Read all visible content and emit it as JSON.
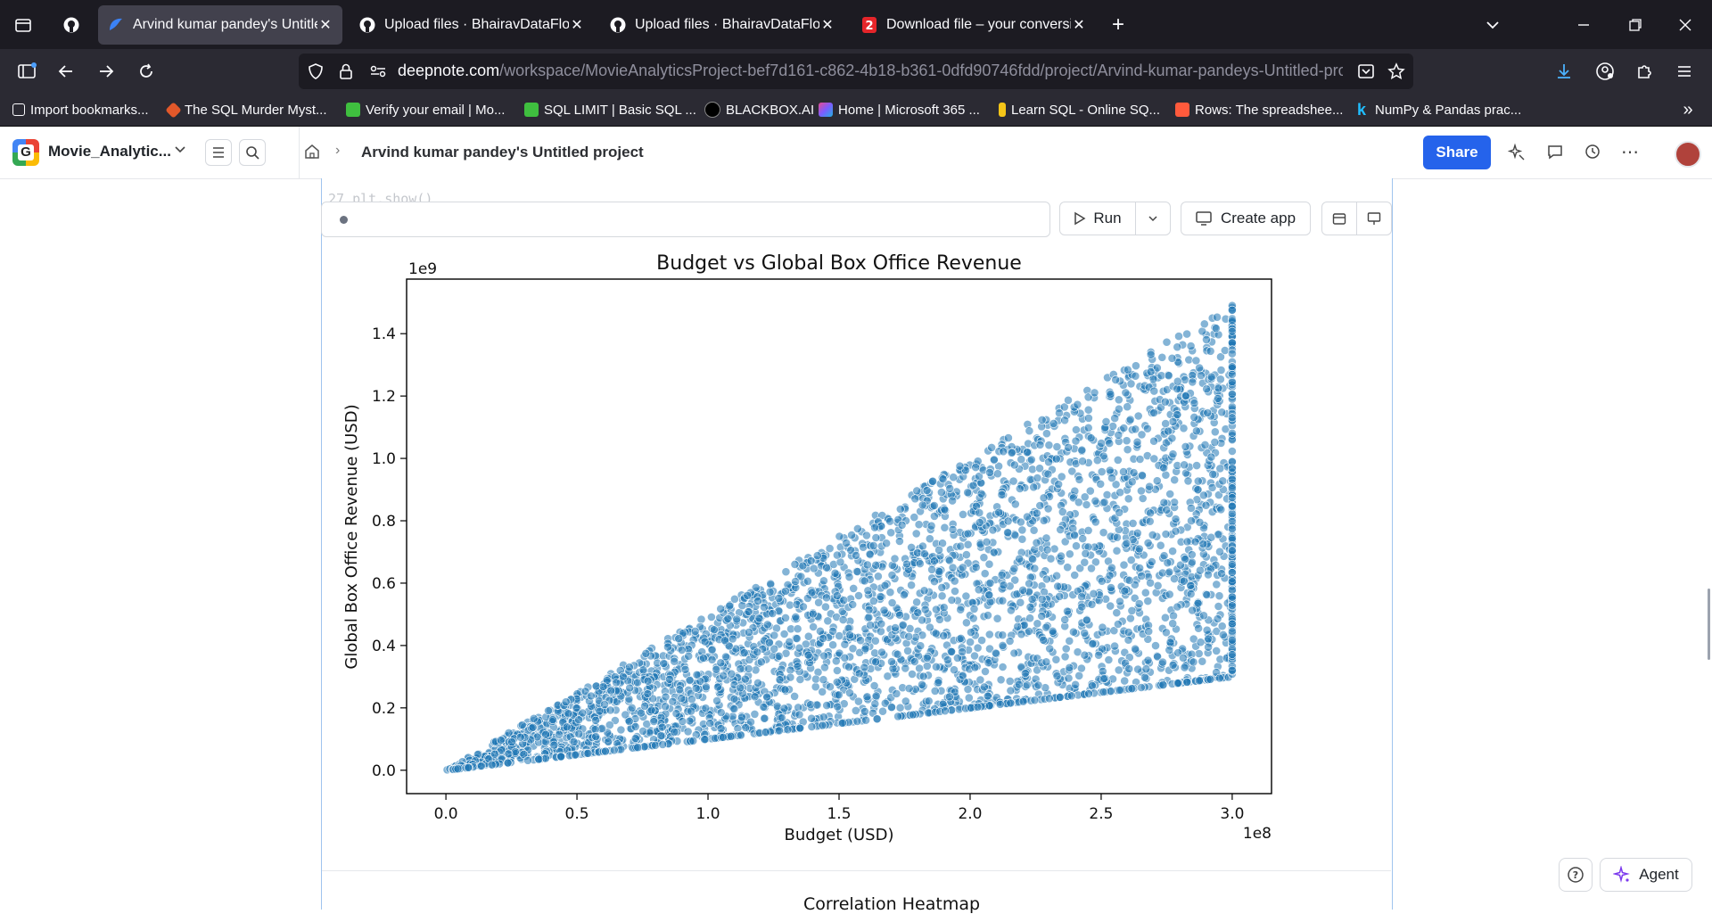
{
  "browser": {
    "tabs": [
      {
        "label": "Arvind kumar pandey's Untitled",
        "active": true,
        "icon": "deepnote-icon"
      },
      {
        "label": "Upload files · BhairavDataFlow/f",
        "active": false,
        "icon": "github-icon"
      },
      {
        "label": "Upload files · BhairavDataFlow/f",
        "active": false,
        "icon": "github-icon"
      },
      {
        "label": "Download file – your conversion",
        "active": false,
        "icon": "pdf2-icon"
      }
    ],
    "url_host": "deepnote.com",
    "url_path": "/workspace/MovieAnalyticsProject-bef7d161-c862-4b18-b361-0dfd90746fdd/project/Arvind-kumar-pandeys-Untitled-project",
    "bookmarks": [
      "Import bookmarks...",
      "The SQL Murder Myst...",
      "Verify your email | Mo...",
      "SQL LIMIT | Basic SQL ...",
      "BLACKBOX.AI",
      "Home | Microsoft 365 ...",
      "Learn SQL - Online SQ...",
      "Rows: The spreadshee...",
      "NumPy & Pandas prac..."
    ],
    "colors": {
      "tabstrip": "#1c1b22",
      "toolbar": "#2b2a33",
      "accent": "#2563eb"
    }
  },
  "app": {
    "workspace_name": "Movie_Analytic...",
    "breadcrumb_title": "Arvind kumar pandey's Untitled project",
    "share_label": "Share",
    "run_label": "Run",
    "create_app_label": "Create app",
    "code_fragment": "27  plt.show()",
    "agent_label": "Agent",
    "next_chart_title": "Correlation Heatmap"
  },
  "chart_data": {
    "type": "scatter",
    "title": "Budget vs Global Box Office Revenue",
    "xlabel": "Budget (USD)",
    "ylabel": "Global Box Office Revenue (USD)",
    "x_offset_label": "1e8",
    "y_offset_label": "1e9",
    "xlim": [
      -0.15,
      3.15
    ],
    "ylim": [
      -0.075,
      1.575
    ],
    "x_ticks": [
      "0.0",
      "0.5",
      "1.0",
      "1.5",
      "2.0",
      "2.5",
      "3.0"
    ],
    "x_tick_values": [
      0,
      0.5,
      1.0,
      1.5,
      2.0,
      2.5,
      3.0
    ],
    "y_ticks": [
      "0.0",
      "0.2",
      "0.4",
      "0.6",
      "0.8",
      "1.0",
      "1.2",
      "1.4"
    ],
    "y_tick_values": [
      0,
      0.2,
      0.4,
      0.6,
      0.8,
      1.0,
      1.2,
      1.4
    ],
    "grid": false,
    "point_color": "#1f77b4",
    "region_description_values": {
      "budget_range": [
        0,
        3.0
      ],
      "revenue_min_ratio": 1.0,
      "revenue_max_ratio": 5.0
    }
  }
}
